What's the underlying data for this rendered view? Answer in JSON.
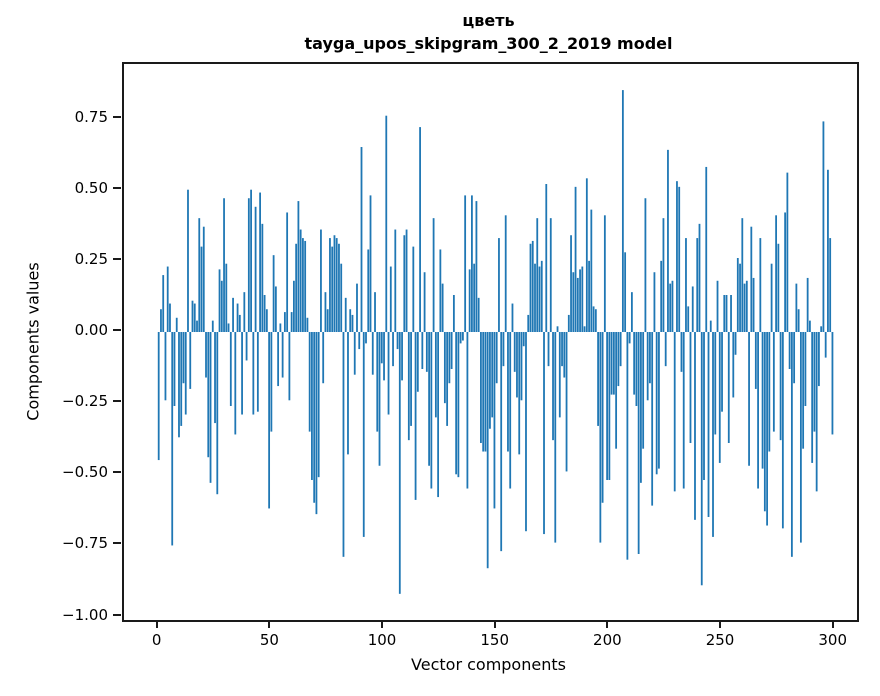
{
  "title": {
    "line1": "цветь",
    "line2": "tayga_upos_skipgram_300_2_2019 model"
  },
  "axes": {
    "xlabel": "Vector components",
    "ylabel": "Components values",
    "x_tick_labels": [
      "0",
      "50",
      "100",
      "150",
      "200",
      "250",
      "300"
    ],
    "y_tick_labels": [
      "0.75",
      "0.50",
      "0.25",
      "0.00",
      "−0.25",
      "−0.50",
      "−0.75",
      "−1.00"
    ]
  },
  "colors": {
    "bar": "#1f77b4",
    "spine": "#1a1a1a",
    "text": "#000000",
    "background": "#ffffff"
  },
  "chart_data": {
    "type": "bar",
    "title": "цветь\ntayga_upos_skipgram_300_2_2019 model",
    "xlabel": "Vector components",
    "ylabel": "Components values",
    "x_range": [
      0,
      299
    ],
    "xlim": [
      -15.4,
      310
    ],
    "ylim": [
      -1.01,
      0.94
    ],
    "x_tick_values": [
      0,
      50,
      100,
      150,
      200,
      250,
      300
    ],
    "y_tick_values": [
      0.75,
      0.5,
      0.25,
      0.0,
      -0.25,
      -0.5,
      -0.75,
      -1.0
    ],
    "grid": false,
    "legend": null,
    "bar_color": "#1f77b4",
    "values": [
      -0.45,
      0.08,
      0.2,
      -0.24,
      0.23,
      0.1,
      -0.75,
      -0.26,
      0.05,
      -0.37,
      -0.33,
      -0.18,
      -0.29,
      0.5,
      -0.2,
      0.11,
      0.1,
      0.04,
      0.4,
      0.3,
      0.37,
      -0.16,
      -0.44,
      -0.53,
      0.04,
      -0.32,
      -0.57,
      0.22,
      0.18,
      0.47,
      0.24,
      0.03,
      -0.26,
      0.12,
      -0.36,
      0.1,
      0.06,
      -0.29,
      0.14,
      -0.1,
      0.47,
      0.5,
      -0.29,
      0.44,
      -0.28,
      0.49,
      0.38,
      0.13,
      0.08,
      -0.62,
      -0.35,
      0.27,
      0.16,
      -0.19,
      0.03,
      -0.16,
      0.07,
      0.42,
      -0.24,
      0.07,
      0.18,
      0.31,
      0.46,
      0.36,
      0.33,
      0.32,
      0.05,
      -0.35,
      -0.52,
      -0.6,
      -0.64,
      -0.51,
      0.36,
      -0.18,
      0.14,
      0.08,
      0.33,
      0.3,
      0.34,
      0.33,
      0.31,
      0.24,
      -0.79,
      0.12,
      -0.43,
      0.08,
      0.06,
      -0.15,
      0.17,
      -0.06,
      0.65,
      -0.72,
      -0.04,
      0.29,
      0.48,
      -0.15,
      0.14,
      -0.35,
      -0.47,
      -0.11,
      -0.17,
      0.76,
      -0.29,
      0.23,
      -0.12,
      0.36,
      -0.06,
      -0.92,
      -0.17,
      0.34,
      0.36,
      -0.38,
      -0.33,
      0.3,
      -0.59,
      -0.21,
      0.72,
      -0.13,
      0.21,
      -0.14,
      -0.47,
      -0.55,
      0.4,
      -0.3,
      -0.58,
      0.29,
      0.17,
      -0.25,
      -0.33,
      -0.18,
      -0.13,
      0.13,
      -0.5,
      -0.51,
      -0.04,
      -0.03,
      0.48,
      -0.55,
      0.22,
      0.48,
      0.24,
      0.46,
      0.12,
      -0.39,
      -0.42,
      -0.42,
      -0.83,
      -0.34,
      -0.3,
      -0.62,
      -0.18,
      0.33,
      -0.77,
      -0.12,
      0.41,
      -0.42,
      -0.55,
      0.1,
      -0.14,
      -0.23,
      -0.43,
      -0.24,
      -0.05,
      -0.7,
      0.06,
      0.31,
      0.32,
      0.24,
      0.4,
      0.23,
      0.25,
      -0.71,
      0.52,
      -0.12,
      0.4,
      -0.38,
      -0.74,
      0.02,
      -0.3,
      -0.12,
      -0.16,
      -0.49,
      0.06,
      0.34,
      0.21,
      0.51,
      0.19,
      0.22,
      0.23,
      0.02,
      0.54,
      0.25,
      0.43,
      0.09,
      0.08,
      -0.33,
      -0.74,
      -0.6,
      0.41,
      -0.52,
      -0.52,
      -0.22,
      -0.22,
      -0.41,
      -0.19,
      -0.12,
      0.85,
      0.28,
      -0.8,
      -0.04,
      0.14,
      -0.22,
      -0.26,
      -0.78,
      -0.53,
      -0.41,
      0.47,
      -0.24,
      -0.18,
      -0.61,
      0.21,
      -0.5,
      -0.48,
      0.25,
      0.4,
      -0.12,
      0.64,
      0.17,
      0.18,
      -0.56,
      0.53,
      0.51,
      -0.14,
      -0.55,
      0.33,
      0.09,
      -0.39,
      0.16,
      -0.66,
      0.33,
      0.38,
      -0.89,
      -0.52,
      0.58,
      -0.65,
      0.04,
      -0.72,
      -0.36,
      0.18,
      -0.46,
      -0.28,
      0.13,
      0.13,
      -0.39,
      0.13,
      -0.23,
      -0.08,
      0.26,
      0.24,
      0.4,
      0.17,
      0.18,
      -0.47,
      0.37,
      0.19,
      -0.2,
      -0.55,
      0.33,
      -0.48,
      -0.63,
      -0.68,
      -0.42,
      0.24,
      -0.35,
      0.41,
      0.31,
      -0.38,
      -0.69,
      0.42,
      0.56,
      -0.13,
      -0.79,
      -0.18,
      0.17,
      0.08,
      -0.74,
      -0.41,
      -0.26,
      0.19,
      0.04,
      -0.46,
      -0.35,
      -0.56,
      -0.19,
      0.02,
      0.74,
      -0.09,
      0.57,
      0.33,
      -0.36
    ]
  }
}
